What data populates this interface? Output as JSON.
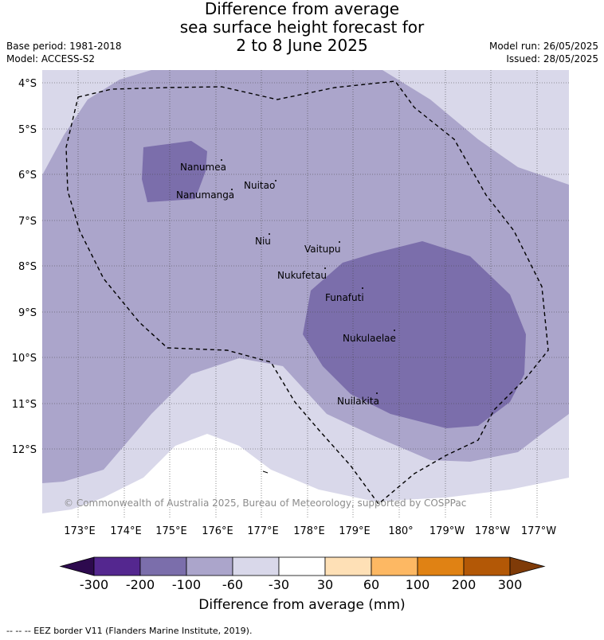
{
  "title": {
    "line1": "Difference from average",
    "line2": "sea surface height forecast for",
    "line3": "2 to 8 June 2025"
  },
  "meta": {
    "base_period": "Base period: 1981-2018",
    "model": "Model: ACCESS-S2",
    "model_run": "Model run: 26/05/2025",
    "issued": "Issued: 28/05/2025"
  },
  "map": {
    "lat_labels": [
      "4°S",
      "5°S",
      "6°S",
      "7°S",
      "8°S",
      "9°S",
      "10°S",
      "11°S",
      "12°S"
    ],
    "lon_labels": [
      "173°E",
      "174°E",
      "175°E",
      "176°E",
      "177°E",
      "178°E",
      "179°E",
      "180°",
      "179°W",
      "178°W",
      "177°W"
    ],
    "places": [
      {
        "name": "Nanumea"
      },
      {
        "name": "Nuitao"
      },
      {
        "name": "Nanumanga"
      },
      {
        "name": "Niu"
      },
      {
        "name": "Vaitupu"
      },
      {
        "name": "Nukufetau"
      },
      {
        "name": "Funafuti"
      },
      {
        "name": "Nukulaelae"
      },
      {
        "name": "Nuilakita"
      }
    ],
    "copyright": "© Commonwealth of Australia 2025, Bureau of Meteorology, supported by COSPPac",
    "colors": {
      "lt_-300": "#2d0a4e",
      "-300_-200": "#54278f",
      "-200_-100": "#7b6eab",
      "-100_-60": "#aba5cb",
      "-60_-30": "#d9d8ea",
      "-30_30": "#ffffff",
      "30_60": "#fee0b6",
      "60_100": "#fdb863",
      "100_200": "#e08214",
      "200_300": "#b35806",
      "gt_300": "#7f3b08"
    }
  },
  "colorbar": {
    "ticks": [
      "-300",
      "-200",
      "-100",
      "-60",
      "-30",
      "30",
      "60",
      "100",
      "200",
      "300"
    ],
    "title": "Difference from average (mm)"
  },
  "footer": "-- -- -- EEZ border V11 (Flanders Marine Institute, 2019)."
}
